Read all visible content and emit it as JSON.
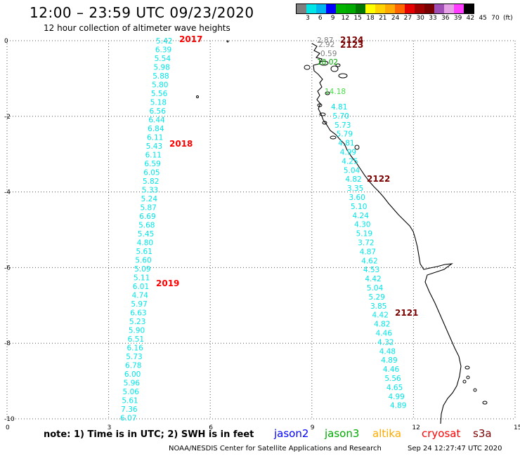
{
  "header": {
    "title": "12:00 – 23:59 UTC 09/23/2020",
    "subtitle": "12 hour collection of altimeter wave heights"
  },
  "colorbar": {
    "colors": [
      "#7f7f7f",
      "#00e6e6",
      "#00b4f0",
      "#0000ff",
      "#00b400",
      "#00aa00",
      "#007800",
      "#ffff00",
      "#ffd200",
      "#ffaa00",
      "#ff6600",
      "#e60000",
      "#a00000",
      "#780000",
      "#a050b4",
      "#e6a0e6",
      "#ff3cff",
      "#000000"
    ],
    "labels": [
      "3",
      "6",
      "9",
      "12",
      "15",
      "18",
      "21",
      "24",
      "27",
      "30",
      "33",
      "36",
      "39",
      "42",
      "45",
      "70",
      "(ft)"
    ]
  },
  "axes": {
    "x_ticks": [
      "0",
      "3",
      "6",
      "9",
      "12",
      "15"
    ],
    "y_ticks": [
      "0",
      "-2",
      "-4",
      "-6",
      "-8",
      "-10"
    ],
    "grid": "dotted"
  },
  "passes": [
    {
      "label": "2017",
      "color": "#ff0000"
    },
    {
      "label": "2018",
      "color": "#ff0000"
    },
    {
      "label": "2019",
      "color": "#ff0000"
    },
    {
      "label": "2124",
      "color": "#7a0000"
    },
    {
      "label": "2123",
      "color": "#7a0000"
    },
    {
      "label": "2122",
      "color": "#7a0000"
    },
    {
      "label": "2121",
      "color": "#7a0000"
    }
  ],
  "track_left": {
    "color": "#00e6e6",
    "values": [
      "5.42",
      "6.39",
      "5.54",
      "5.98",
      "5.88",
      "5.80",
      "5.56",
      "5.18",
      "6.56",
      "6.44",
      "6.84",
      "6.11",
      "5.43",
      "6.11",
      "6.59",
      "6.05",
      "5.82",
      "5.33",
      "5.24",
      "5.87",
      "6.69",
      "5.68",
      "5.45",
      "4.80",
      "5.61",
      "5.60",
      "5.09",
      "5.11",
      "6.01",
      "4.74",
      "5.97",
      "6.63",
      "5.23",
      "5.90",
      "6.51",
      "6.16",
      "5.73",
      "6.78",
      "6.00",
      "5.96",
      "5.06",
      "5.61",
      "7.36",
      "6.07"
    ]
  },
  "track_right": {
    "color": "#00e6e6",
    "values": [
      "4.81",
      "5.70",
      "5.73",
      "5.79",
      "4.81",
      "4.99",
      "4.25",
      "5.04",
      "4.82",
      "3.35",
      "3.60",
      "5.10",
      "4.24",
      "4.30",
      "5.19",
      "3.72",
      "4.87",
      "4.62",
      "4.53",
      "4.42",
      "5.04",
      "5.29",
      "3.85",
      "4.42",
      "4.82",
      "4.46",
      "4.32",
      "4.48",
      "4.89",
      "4.46",
      "5.56",
      "4.65",
      "4.99",
      "4.89"
    ]
  },
  "extra_values": [
    {
      "text": "2.87",
      "color": "#7f7f7f"
    },
    {
      "text": "2.92",
      "color": "#7f7f7f"
    },
    {
      "text": "0.59",
      "color": "#7f7f7f"
    },
    {
      "text": "18.02",
      "color": "#00aa00"
    },
    {
      "text": "14.18",
      "color": "#44dd44"
    }
  ],
  "note": "note: 1) Time is in UTC; 2) SWH is in feet",
  "satellites": [
    {
      "name": "jason2",
      "color": "#0000ff"
    },
    {
      "name": "jason3",
      "color": "#00aa00"
    },
    {
      "name": "altika",
      "color": "#ffaa00"
    },
    {
      "name": "cryosat",
      "color": "#ff0000"
    },
    {
      "name": "s3a",
      "color": "#7a0000"
    }
  ],
  "footer": {
    "credit": "NOAA/NESDIS Center for Satellite Applications and Research",
    "timestamp": "Sep 24 12:27:47 UTC 2020"
  }
}
